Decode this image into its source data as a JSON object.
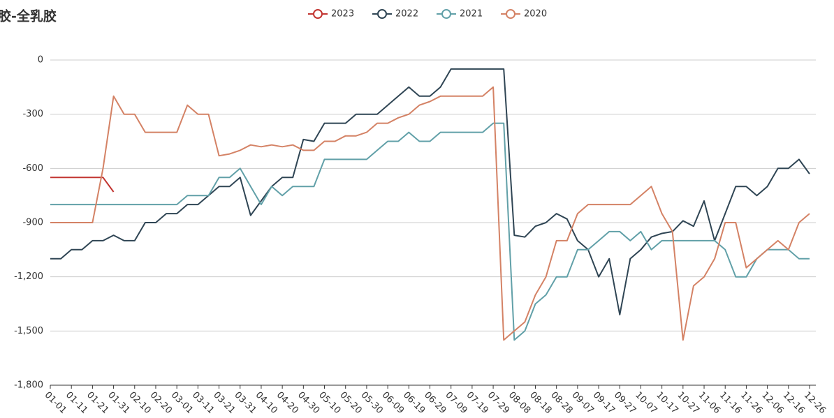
{
  "chart_data": {
    "type": "line",
    "title": "橡胶-全乳胶",
    "categories": [
      "01-01",
      null,
      "01-11",
      null,
      "01-21",
      null,
      "01-31",
      null,
      "02-10",
      null,
      "02-20",
      null,
      "03-01",
      null,
      "03-11",
      null,
      "03-21",
      null,
      "03-31",
      null,
      "04-10",
      null,
      "04-20",
      null,
      "04-30",
      null,
      "05-10",
      null,
      "05-20",
      null,
      "05-30",
      null,
      "06-09",
      null,
      "06-19",
      null,
      "06-29",
      null,
      "07-09",
      null,
      "07-19",
      null,
      "07-29",
      null,
      "08-08",
      null,
      "08-18",
      null,
      "08-28",
      null,
      "09-07",
      null,
      "09-17",
      null,
      "09-27",
      null,
      "10-07",
      null,
      "10-17",
      null,
      "10-27",
      null,
      "11-06",
      null,
      "11-16",
      null,
      "11-26",
      null,
      "12-06",
      null,
      "12-16",
      null,
      "12-26"
    ],
    "series": [
      {
        "name": "2023",
        "color": "#c23531",
        "values": [
          -650,
          -650,
          -650,
          -650,
          -650,
          -650,
          -730,
          null,
          null,
          null,
          null,
          null,
          null,
          null,
          null,
          null,
          null,
          null,
          null,
          null,
          null,
          null,
          null,
          null,
          null,
          null,
          null,
          null,
          null,
          null,
          null,
          null,
          null,
          null,
          null,
          null,
          null,
          null,
          null,
          null,
          null,
          null,
          null,
          null,
          null,
          null,
          null,
          null,
          null,
          null,
          null,
          null,
          null,
          null,
          null,
          null,
          null,
          null,
          null,
          null,
          null,
          null,
          null,
          null,
          null,
          null,
          null,
          null,
          null,
          null,
          null,
          null,
          null
        ]
      },
      {
        "name": "2022",
        "color": "#2f4554",
        "values": [
          -1100,
          -1100,
          -1050,
          -1050,
          -1000,
          -1000,
          -970,
          -1000,
          -1000,
          -900,
          -900,
          -850,
          -850,
          -800,
          -800,
          -750,
          -700,
          -700,
          -650,
          -860,
          -780,
          -700,
          -650,
          -650,
          -440,
          -450,
          -350,
          -350,
          -350,
          -300,
          -300,
          -300,
          -250,
          -200,
          -150,
          -200,
          -200,
          -150,
          -50,
          -50,
          -50,
          -50,
          -50,
          -50,
          -970,
          -980,
          -920,
          -900,
          -850,
          -880,
          -1000,
          -1050,
          -1200,
          -1100,
          -1410,
          -1100,
          -1050,
          -980,
          -960,
          -950,
          -890,
          -920,
          -780,
          -1000,
          -850,
          -700,
          -700,
          -750,
          -700,
          -600,
          -600,
          -550,
          -630
        ]
      },
      {
        "name": "2021",
        "color": "#61a0a8",
        "values": [
          -800,
          -800,
          -800,
          -800,
          -800,
          -800,
          -800,
          -800,
          -800,
          -800,
          -800,
          -800,
          -800,
          -750,
          -750,
          -750,
          -650,
          -650,
          -600,
          -700,
          -800,
          -700,
          -750,
          -700,
          -700,
          -700,
          -550,
          -550,
          -550,
          -550,
          -550,
          -500,
          -450,
          -450,
          -400,
          -450,
          -450,
          -400,
          -400,
          -400,
          -400,
          -400,
          -350,
          -350,
          -1550,
          -1500,
          -1350,
          -1300,
          -1200,
          -1200,
          -1050,
          -1050,
          -1000,
          -950,
          -950,
          -1000,
          -950,
          -1050,
          -1000,
          -1000,
          -1000,
          -1000,
          -1000,
          -1000,
          -1050,
          -1200,
          -1200,
          -1100,
          -1050,
          -1050,
          -1050,
          -1100,
          -1100
        ]
      },
      {
        "name": "2020",
        "color": "#d48265",
        "values": [
          -900,
          -900,
          -900,
          -900,
          -900,
          -600,
          -200,
          -300,
          -300,
          -400,
          -400,
          -400,
          -400,
          -250,
          -300,
          -300,
          -530,
          -520,
          -500,
          -470,
          -480,
          -470,
          -480,
          -470,
          -500,
          -500,
          -450,
          -450,
          -420,
          -420,
          -400,
          -350,
          -350,
          -320,
          -300,
          -250,
          -230,
          -200,
          -200,
          -200,
          -200,
          -200,
          -150,
          -1550,
          -1500,
          -1450,
          -1300,
          -1200,
          -1000,
          -1000,
          -850,
          -800,
          -800,
          -800,
          -800,
          -800,
          -750,
          -700,
          -850,
          -950,
          -1550,
          -1250,
          -1200,
          -1100,
          -900,
          -900,
          -1150,
          -1100,
          -1050,
          -1000,
          -1050,
          -900,
          -850
        ]
      }
    ],
    "ylim": [
      -1800,
      0
    ],
    "yticks": [
      0,
      -300,
      -600,
      -900,
      {
        "value": -1200,
        "label": "-1,200"
      },
      {
        "value": -1500,
        "label": "-1,500"
      },
      {
        "value": -1800,
        "label": "-1,800"
      }
    ],
    "grid": true
  }
}
